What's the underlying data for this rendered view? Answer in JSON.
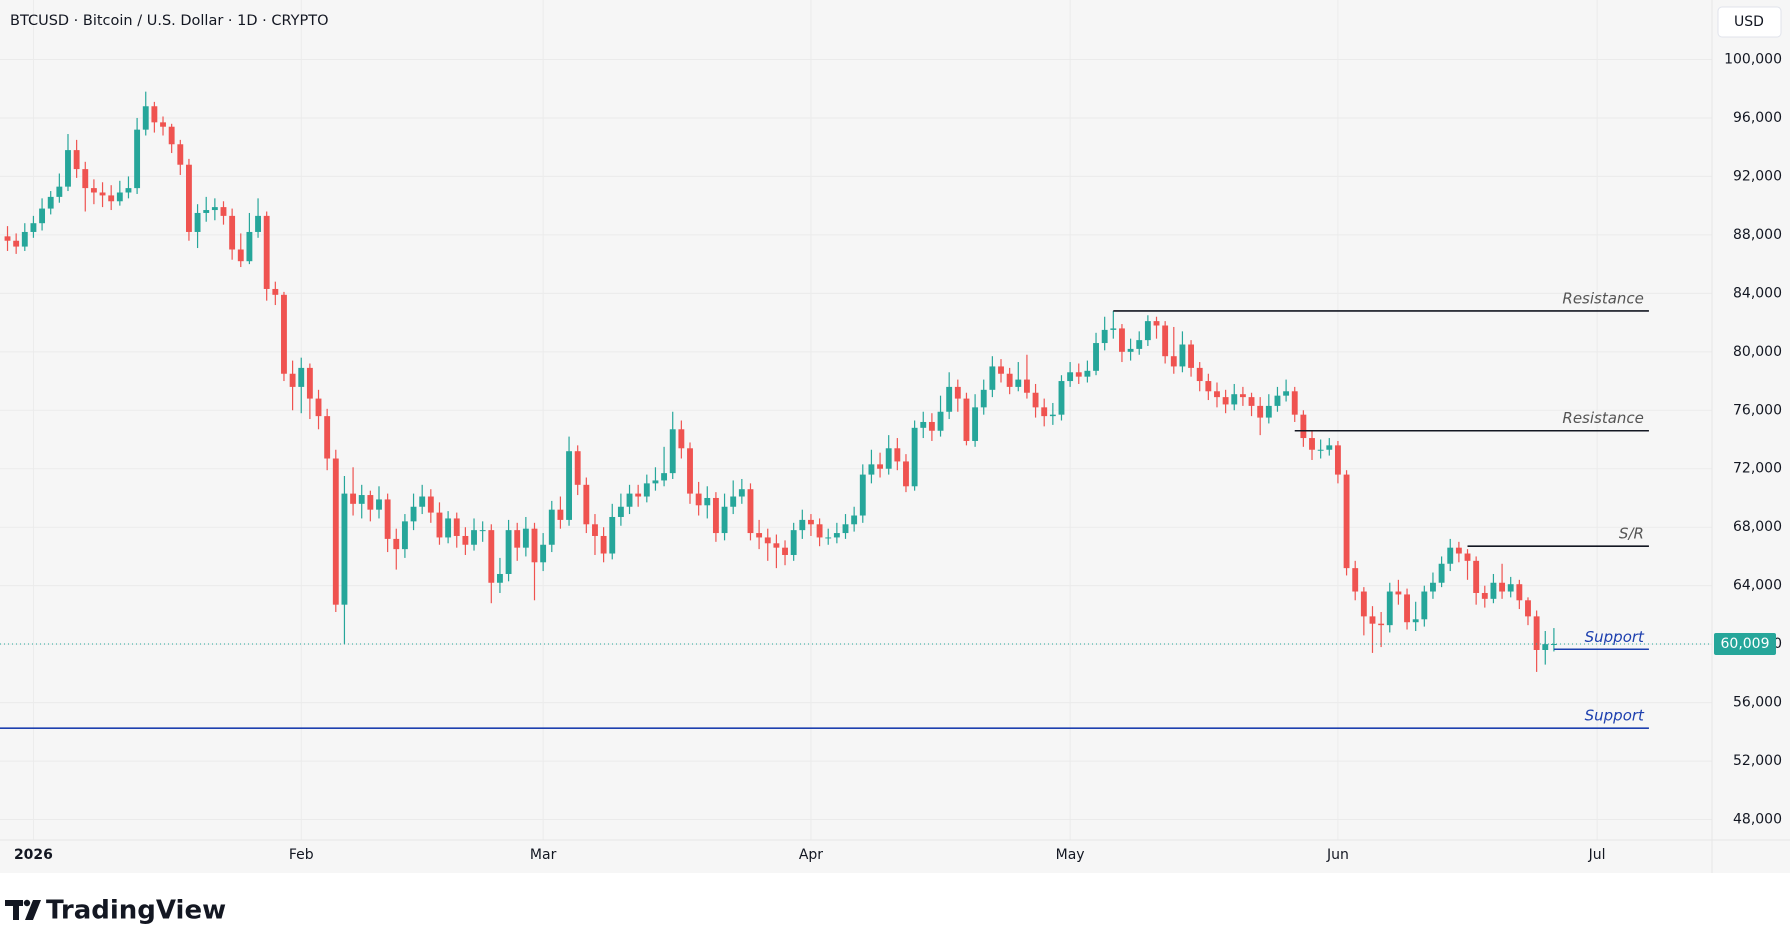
{
  "chart_data": {
    "type": "candlestick",
    "title": "BTCUSD · Bitcoin / U.S. Dollar · 1D · CRYPTO",
    "currency": "USD",
    "brand": "TradingView",
    "up_color": "#26a69a",
    "down_color": "#ef5350",
    "grid": true,
    "xlim": [
      -3.87,
      194.3
    ],
    "ylim": [
      46600,
      104070
    ],
    "xticks": [
      {
        "value": 0,
        "label": "2026"
      },
      {
        "value": 31,
        "label": "Feb"
      },
      {
        "value": 59,
        "label": "Mar"
      },
      {
        "value": 90,
        "label": "Apr"
      },
      {
        "value": 120,
        "label": "May"
      },
      {
        "value": 151,
        "label": "Jun"
      },
      {
        "value": 181,
        "label": "Jul"
      }
    ],
    "yticks": [
      {
        "value": 48000,
        "label": "48,000"
      },
      {
        "value": 52000,
        "label": "52,000"
      },
      {
        "value": 56000,
        "label": "56,000"
      },
      {
        "value": 60000,
        "label": "60,000"
      },
      {
        "value": 64000,
        "label": "64,000"
      },
      {
        "value": 68000,
        "label": "68,000"
      },
      {
        "value": 72000,
        "label": "72,000"
      },
      {
        "value": 76000,
        "label": "76,000"
      },
      {
        "value": 80000,
        "label": "80,000"
      },
      {
        "value": 84000,
        "label": "84,000"
      },
      {
        "value": 88000,
        "label": "88,000"
      },
      {
        "value": 92000,
        "label": "92,000"
      },
      {
        "value": 96000,
        "label": "96,000"
      },
      {
        "value": 100000,
        "label": "100,000"
      }
    ],
    "last_label": "60,009",
    "levels": [
      {
        "label": "Resistance",
        "value": 82800,
        "x1": 125,
        "x2": 187,
        "color": "#131722"
      },
      {
        "label": "Resistance",
        "value": 74600,
        "x1": 146,
        "x2": 187,
        "color": "#131722"
      },
      {
        "label": "S/R",
        "value": 66700,
        "x1": 166,
        "x2": 187,
        "color": "#131722"
      },
      {
        "label": "Support",
        "value": 59650,
        "x1": 176,
        "x2": 187,
        "color": "#1e40af"
      },
      {
        "label": "Support",
        "value": 54250,
        "x2": 187,
        "color": "#1e40af"
      }
    ],
    "x": [
      -3,
      -2,
      -1,
      0,
      1,
      2,
      3,
      4,
      5,
      6,
      7,
      8,
      9,
      10,
      11,
      12,
      13,
      14,
      15,
      16,
      17,
      18,
      19,
      20,
      21,
      22,
      23,
      24,
      25,
      26,
      27,
      28,
      29,
      30,
      31,
      32,
      33,
      34,
      35,
      36,
      37,
      38,
      39,
      40,
      41,
      42,
      43,
      44,
      45,
      46,
      47,
      48,
      49,
      50,
      51,
      52,
      53,
      54,
      55,
      56,
      57,
      58,
      59,
      60,
      61,
      62,
      63,
      64,
      65,
      66,
      67,
      68,
      69,
      70,
      71,
      72,
      73,
      74,
      75,
      76,
      77,
      78,
      79,
      80,
      81,
      82,
      83,
      84,
      85,
      86,
      87,
      88,
      89,
      90,
      91,
      92,
      93,
      94,
      95,
      96,
      97,
      98,
      99,
      100,
      101,
      102,
      103,
      104,
      105,
      106,
      107,
      108,
      109,
      110,
      111,
      112,
      113,
      114,
      115,
      116,
      117,
      118,
      119,
      120,
      121,
      122,
      123,
      124,
      125,
      126,
      127,
      128,
      129,
      130,
      131,
      132,
      133,
      134,
      135,
      136,
      137,
      138,
      139,
      140,
      141,
      142,
      143,
      144,
      145,
      146,
      147,
      148,
      149,
      150,
      151,
      152,
      153,
      154,
      155,
      156,
      157,
      158,
      159,
      160,
      161,
      162,
      163,
      164,
      165,
      166,
      167,
      168,
      169,
      170,
      171,
      172,
      173,
      174,
      175,
      176
    ],
    "open": [
      87900,
      87600,
      87200,
      88200,
      88800,
      89800,
      90600,
      91300,
      93800,
      92500,
      91200,
      90900,
      90700,
      90300,
      90900,
      91200,
      95200,
      96800,
      95700,
      95400,
      94200,
      92800,
      88200,
      89500,
      89700,
      89900,
      89300,
      87000,
      86200,
      88200,
      89300,
      84300,
      83900,
      78500,
      77600,
      78900,
      76800,
      75600,
      72700,
      62700,
      70300,
      69600,
      70200,
      69200,
      69900,
      67200,
      66500,
      68400,
      69400,
      70100,
      69000,
      67300,
      68600,
      67400,
      66800,
      67800,
      67800,
      64200,
      64800,
      67800,
      66600,
      67900,
      65600,
      66800,
      69200,
      68500,
      73200,
      70900,
      68200,
      67400,
      66200,
      68700,
      69400,
      70300,
      70100,
      71000,
      71200,
      71700,
      74700,
      73400,
      70300,
      69500,
      70000,
      67600,
      69400,
      70100,
      70600,
      67600,
      67300,
      66900,
      66600,
      66100,
      67800,
      68500,
      68200,
      67300,
      67300,
      67600,
      68200,
      68800,
      71600,
      72300,
      72000,
      73400,
      72500,
      70800,
      74800,
      75200,
      74600,
      75900,
      77600,
      76800,
      73900,
      76200,
      77400,
      79000,
      78500,
      77600,
      78100,
      77200,
      76200,
      75600,
      75700,
      78000,
      78600,
      78300,
      78700,
      80600,
      81500,
      81600,
      80000,
      80200,
      80800,
      82100,
      81800,
      79700,
      79000,
      80500,
      78900,
      78000,
      77300,
      76900,
      76400,
      77100,
      76900,
      76300,
      75500,
      76300,
      77000,
      77300,
      75700,
      74100,
      73300,
      73300,
      73600,
      71600,
      65200,
      63600,
      61900,
      61400,
      61300,
      63600,
      63400,
      61500,
      61700,
      63600,
      64200,
      65500,
      66600,
      66200,
      65700,
      63500,
      63100,
      64200,
      63600,
      64100,
      63000,
      61900,
      59600,
      60000
    ],
    "high": [
      88600,
      88100,
      88800,
      89300,
      90500,
      91000,
      92200,
      94900,
      94500,
      93000,
      91800,
      91600,
      91400,
      91700,
      92000,
      96000,
      97800,
      97100,
      96100,
      95600,
      94500,
      93200,
      90100,
      90600,
      90500,
      90300,
      89800,
      88100,
      89500,
      90500,
      89600,
      84800,
      84100,
      79400,
      79600,
      79200,
      77400,
      76100,
      73300,
      71500,
      72100,
      70900,
      70500,
      70800,
      70300,
      67900,
      68900,
      70300,
      70900,
      70600,
      69700,
      69100,
      69000,
      68000,
      68600,
      68400,
      68200,
      65900,
      68500,
      68300,
      68700,
      68300,
      67600,
      69800,
      70100,
      74200,
      73600,
      71400,
      68900,
      68000,
      69600,
      70300,
      70900,
      70900,
      71600,
      72100,
      73500,
      75900,
      75300,
      73800,
      71100,
      70800,
      70400,
      70300,
      71200,
      71300,
      71000,
      68500,
      67900,
      67500,
      67100,
      68300,
      69200,
      68900,
      68600,
      67900,
      68300,
      68900,
      69400,
      72300,
      73300,
      73100,
      74300,
      74100,
      73000,
      75300,
      75900,
      75800,
      77000,
      78600,
      78100,
      77200,
      77100,
      78100,
      79700,
      79500,
      78900,
      79300,
      79800,
      77800,
      76800,
      76500,
      78400,
      79300,
      79200,
      79400,
      81300,
      82400,
      82800,
      81900,
      80900,
      81400,
      82500,
      82400,
      82100,
      81700,
      81400,
      80800,
      79300,
      78500,
      77900,
      77400,
      77800,
      77600,
      77200,
      76900,
      77100,
      77600,
      78100,
      77600,
      76000,
      74600,
      74000,
      74100,
      73900,
      71900,
      65700,
      63900,
      62600,
      62200,
      64200,
      64400,
      63800,
      62900,
      64000,
      64900,
      66000,
      67200,
      67000,
      66500,
      66000,
      64000,
      64800,
      65500,
      64600,
      64400,
      63200,
      62300,
      60900,
      61100
    ],
    "low": [
      86900,
      86700,
      86900,
      87800,
      88300,
      89400,
      90200,
      91000,
      91900,
      89600,
      90100,
      89900,
      89700,
      90000,
      90500,
      90800,
      94800,
      95000,
      94800,
      93600,
      92100,
      87600,
      87100,
      88900,
      89000,
      88700,
      86300,
      85800,
      86000,
      87800,
      83500,
      83200,
      78000,
      76000,
      75800,
      75400,
      74700,
      71900,
      62200,
      60000,
      68800,
      68600,
      68400,
      68600,
      66300,
      65100,
      65900,
      67800,
      68900,
      68300,
      66800,
      66900,
      66600,
      66100,
      66400,
      67000,
      62800,
      63500,
      64300,
      65700,
      66000,
      63000,
      65000,
      66300,
      67900,
      68100,
      70200,
      67600,
      66100,
      65600,
      65800,
      68100,
      68900,
      69400,
      69700,
      70500,
      70800,
      71300,
      72700,
      69600,
      68800,
      68600,
      67000,
      67100,
      68900,
      69600,
      67100,
      66500,
      65700,
      65200,
      65400,
      65700,
      67200,
      67400,
      66700,
      66800,
      66900,
      67200,
      67700,
      68300,
      71000,
      71400,
      71600,
      71900,
      70400,
      70500,
      74100,
      73900,
      74200,
      75400,
      75900,
      73600,
      73500,
      75700,
      76900,
      77900,
      77100,
      77300,
      76800,
      75500,
      74900,
      75000,
      75300,
      77600,
      77800,
      77900,
      78400,
      80100,
      80900,
      79300,
      79400,
      79800,
      80400,
      80900,
      79200,
      78500,
      78600,
      78300,
      77300,
      76700,
      76200,
      75800,
      76000,
      76300,
      75600,
      74300,
      75100,
      75900,
      76600,
      75200,
      73500,
      72600,
      72700,
      72900,
      71000,
      64700,
      63000,
      60600,
      59400,
      59800,
      60800,
      62700,
      61000,
      60900,
      61200,
      63100,
      63900,
      65000,
      65600,
      64400,
      62700,
      62500,
      62800,
      63100,
      63200,
      62400,
      61300,
      58100,
      58600,
      59500
    ],
    "close": [
      87600,
      87200,
      88200,
      88800,
      89800,
      90600,
      91300,
      93800,
      92500,
      91200,
      90900,
      90700,
      90300,
      90900,
      91200,
      95200,
      96800,
      95700,
      95400,
      94200,
      92800,
      88200,
      89500,
      89700,
      89900,
      89300,
      87000,
      86200,
      88200,
      89300,
      84300,
      83900,
      78500,
      77600,
      78900,
      76800,
      75600,
      72700,
      62700,
      70300,
      69600,
      70200,
      69200,
      69900,
      67200,
      66500,
      68400,
      69400,
      70100,
      69000,
      67300,
      68600,
      67400,
      66800,
      67800,
      67800,
      64200,
      64800,
      67800,
      66600,
      67900,
      65600,
      66800,
      69200,
      68500,
      73200,
      70900,
      68200,
      67400,
      66200,
      68700,
      69400,
      70300,
      70100,
      71000,
      71200,
      71700,
      74700,
      73400,
      70300,
      69500,
      70000,
      67600,
      69400,
      70100,
      70600,
      67600,
      67300,
      66900,
      66600,
      66100,
      67800,
      68500,
      68200,
      67300,
      67300,
      67600,
      68200,
      68800,
      71600,
      72300,
      72000,
      73400,
      72500,
      70800,
      74800,
      75200,
      74600,
      75900,
      77600,
      76800,
      73900,
      76200,
      77400,
      79000,
      78500,
      77600,
      78100,
      77200,
      76200,
      75600,
      75700,
      78000,
      78600,
      78300,
      78700,
      80600,
      81500,
      81600,
      80000,
      80200,
      80800,
      82100,
      81800,
      79700,
      79000,
      80500,
      78900,
      78000,
      77300,
      76900,
      76400,
      77100,
      76900,
      76300,
      75500,
      76300,
      77000,
      77300,
      75700,
      74100,
      73300,
      73300,
      73600,
      71600,
      65200,
      63600,
      61900,
      61400,
      61300,
      63600,
      63400,
      61500,
      61700,
      63600,
      64200,
      65500,
      66600,
      66200,
      65700,
      63500,
      63100,
      64200,
      63600,
      64100,
      63000,
      61900,
      59600,
      60000,
      60009
    ]
  }
}
